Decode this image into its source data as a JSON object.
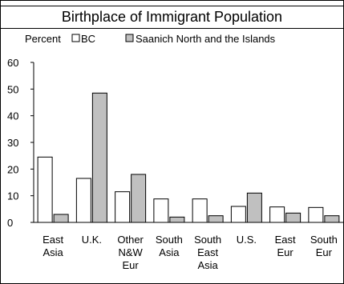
{
  "chart_data": {
    "type": "bar",
    "title": "Birthplace of Immigrant Population",
    "ylabel": "Percent",
    "ylim": [
      0,
      60
    ],
    "yticks": [
      0,
      10,
      20,
      30,
      40,
      50,
      60
    ],
    "grid": false,
    "legend_position": "top",
    "categories": [
      [
        "East",
        "Asia"
      ],
      [
        "U.K."
      ],
      [
        "Other",
        "N&W",
        "Eur"
      ],
      [
        "South",
        "Asia"
      ],
      [
        "South",
        "East",
        "Asia"
      ],
      [
        "U.S."
      ],
      [
        "East",
        "Eur"
      ],
      [
        "South",
        "Eur"
      ]
    ],
    "series": [
      {
        "name": "BC",
        "color": "#ffffff",
        "values": [
          24.5,
          16.5,
          11.5,
          8.8,
          8.8,
          6.0,
          5.8,
          5.6
        ]
      },
      {
        "name": "Saanich North and the Islands",
        "color": "#c0c0c0",
        "values": [
          3.0,
          48.5,
          18.0,
          2.0,
          2.5,
          11.0,
          3.5,
          2.5
        ]
      }
    ]
  }
}
